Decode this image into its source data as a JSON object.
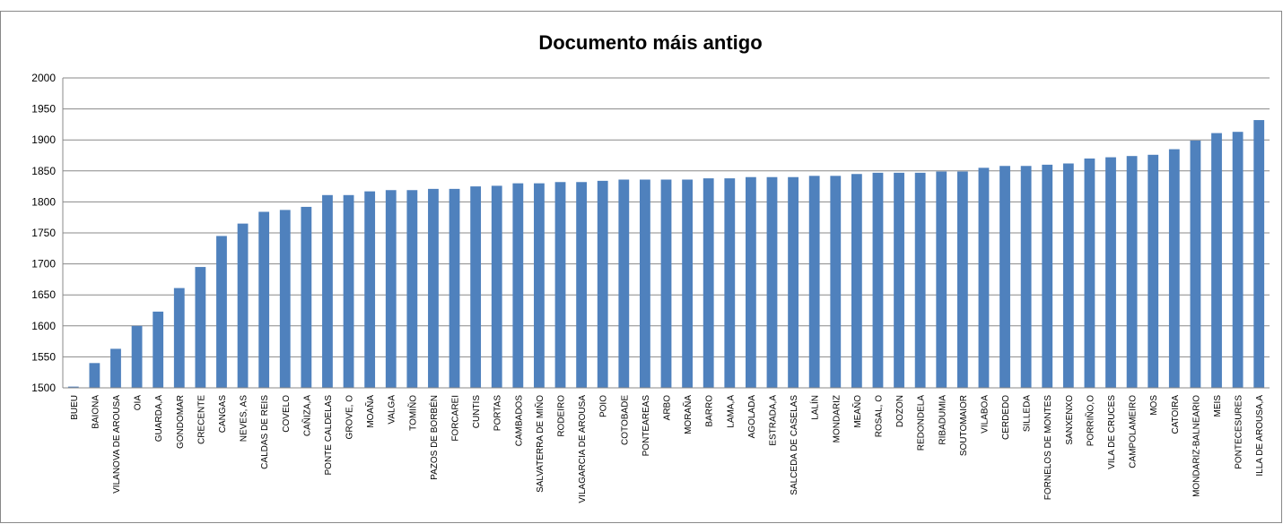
{
  "chart_data": {
    "type": "bar",
    "title": "Documento máis antigo",
    "categories": [
      "BUEU",
      "BAIONA",
      "VILANOVA DE AROUSA",
      "OIA",
      "GUARDA,A",
      "GONDOMAR",
      "CRECENTE",
      "CANGAS",
      "NEVES, AS",
      "CALDAS DE REIS",
      "COVELO",
      "CAÑIZA,A",
      "PONTE CALDELAS",
      "GROVE, O",
      "MOAÑA",
      "VALGA",
      "TOMIÑO",
      "PAZOS DE BORBÉN",
      "FORCAREI",
      "CUNTIS",
      "PORTAS",
      "CAMBADOS",
      "SALVATERRA DE MIÑO",
      "RODEIRO",
      "VILAGARCIA DE AROUSA",
      "POIO",
      "COTOBADE",
      "PONTEAREAS",
      "ARBO",
      "MORAÑA",
      "BARRO",
      "LAMA,A",
      "AGOLADA",
      "ESTRADA,A",
      "SALCEDA DE CASELAS",
      "LALÍN",
      "MONDARIZ",
      "MEAÑO",
      "ROSAL, O",
      "DOZON",
      "REDONDELA",
      "RIBADUMIA",
      "SOUTOMAIOR",
      "VILABOA",
      "CERDEDO",
      "SILLEDA",
      "FORNELOS DE MONTES",
      "SANXENXO",
      "PORRIÑO,O",
      "VILA DE CRUCES",
      "CAMPOLAMEIRO",
      "MOS",
      "CATOIRA",
      "MONDARIZ-BALNEARIO",
      "MEIS",
      "PONTECESURES",
      "ILLA DE AROUSA,A"
    ],
    "values": [
      1502,
      1540,
      1563,
      1600,
      1623,
      1661,
      1695,
      1745,
      1765,
      1784,
      1787,
      1792,
      1811,
      1811,
      1817,
      1819,
      1819,
      1821,
      1821,
      1825,
      1826,
      1830,
      1830,
      1832,
      1832,
      1834,
      1836,
      1836,
      1836,
      1836,
      1838,
      1838,
      1840,
      1840,
      1840,
      1842,
      1842,
      1845,
      1847,
      1847,
      1847,
      1849,
      1849,
      1855,
      1858,
      1858,
      1860,
      1862,
      1870,
      1872,
      1874,
      1876,
      1885,
      1899,
      1911,
      1913,
      1932
    ],
    "color": "#4f81bd",
    "ylim": [
      1500,
      2000
    ],
    "yticks": [
      1500,
      1550,
      1600,
      1650,
      1700,
      1750,
      1800,
      1850,
      1900,
      1950,
      2000
    ],
    "grid": true
  }
}
